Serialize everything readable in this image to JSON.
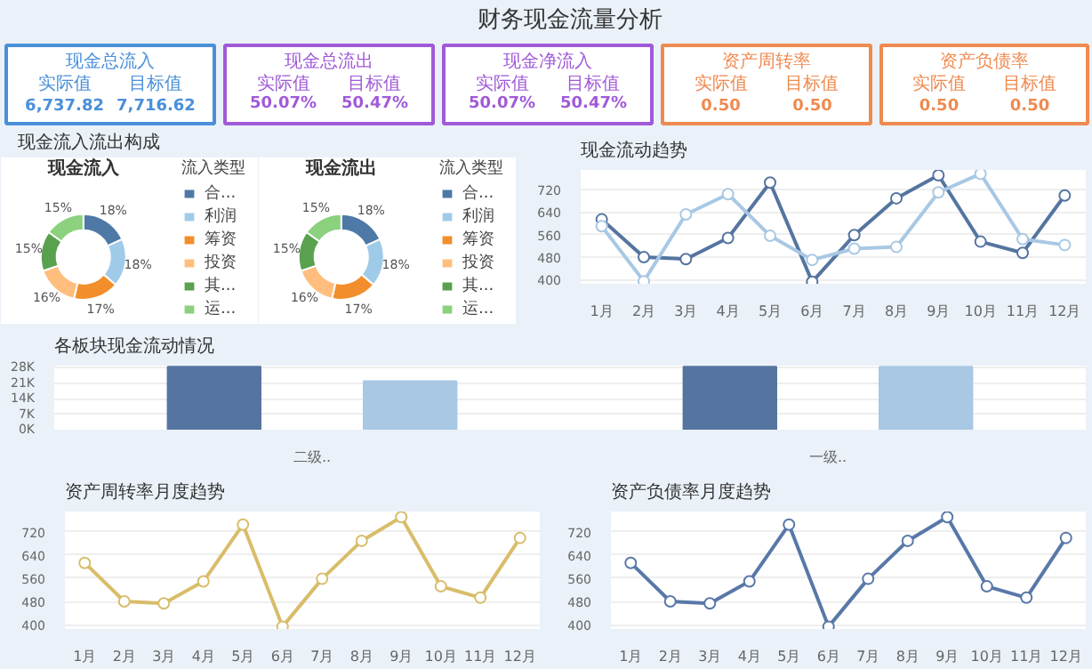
{
  "chart_data": [
    {
      "type": "other",
      "title": "财务现金流量分析"
    },
    {
      "type": "other",
      "title": "现金总流入",
      "color": "#4a90d9",
      "annotations": [
        "实际值",
        "目标值",
        "6,737.82",
        "7,716.62"
      ]
    },
    {
      "type": "other",
      "title": "现金总流出",
      "color": "#a05ad8",
      "annotations": [
        "实际值",
        "目标值",
        "50.07%",
        "50.47%"
      ]
    },
    {
      "type": "other",
      "title": "现金净流入",
      "color": "#a05ad8",
      "annotations": [
        "实际值",
        "目标值",
        "50.07%",
        "50.47%"
      ]
    },
    {
      "type": "other",
      "title": "资产周转率",
      "color": "#ef8a50",
      "annotations": [
        "实际值",
        "目标值",
        "0.50",
        "0.50"
      ]
    },
    {
      "type": "other",
      "title": "资产负债率",
      "color": "#ef8a50",
      "annotations": [
        "实际值",
        "目标值",
        "0.50",
        "0.50"
      ]
    },
    {
      "type": "other",
      "title": "现金流入流出构成"
    },
    {
      "type": "donut",
      "title": "现金流入",
      "legend_title": "流入类型",
      "legend": "right",
      "categories": [
        "合...",
        "利润",
        "筹资",
        "投资",
        "其...",
        "运..."
      ],
      "values": [
        18,
        18,
        17,
        16,
        15,
        15
      ],
      "value_labels": [
        "18%",
        "18%",
        "17%",
        "16%",
        "15%",
        "15%"
      ],
      "colors": [
        "#4e79a7",
        "#a0cbe8",
        "#f28e2b",
        "#ffbe7d",
        "#59a14f",
        "#8cd17d"
      ]
    },
    {
      "type": "donut",
      "title": "现金流出",
      "legend_title": "流入类型",
      "legend": "right",
      "categories": [
        "合...",
        "利润",
        "筹资",
        "投资",
        "其...",
        "运..."
      ],
      "values": [
        18,
        18,
        17,
        16,
        15,
        15
      ],
      "value_labels": [
        "18%",
        "18%",
        "17%",
        "16%",
        "15%",
        "15%"
      ],
      "colors": [
        "#4e79a7",
        "#a0cbe8",
        "#f28e2b",
        "#ffbe7d",
        "#59a14f",
        "#8cd17d"
      ]
    },
    {
      "type": "line",
      "title": "现金流动趋势",
      "categories": [
        "1月",
        "2月",
        "3月",
        "4月",
        "5月",
        "6月",
        "7月",
        "8月",
        "9月",
        "10月",
        "11月",
        "12月"
      ],
      "ylim": [
        385,
        790
      ],
      "yticks": [
        400,
        480,
        560,
        640,
        720
      ],
      "grid": "y",
      "marker": "circle",
      "series": [
        {
          "color": "#5575a0",
          "values": [
            614,
            480,
            473,
            548,
            745,
            392,
            558,
            689,
            771,
            535,
            495,
            699
          ]
        },
        {
          "color": "#a8c8e4",
          "values": [
            590,
            394,
            632,
            704,
            556,
            470,
            510,
            516,
            710,
            776,
            544,
            523
          ]
        }
      ]
    },
    {
      "type": "bar",
      "title": "各板块现金流动情况",
      "categories": [
        "二级..",
        "一级.."
      ],
      "ylim": [
        0,
        29000
      ],
      "yticks": [
        {
          "value": 0,
          "label": "0K"
        },
        {
          "value": 7000,
          "label": "7K"
        },
        {
          "value": 14000,
          "label": "14K"
        },
        {
          "value": 21000,
          "label": "21K"
        },
        {
          "value": 28000,
          "label": "28K"
        }
      ],
      "grid": "y",
      "series": [
        {
          "color": "#5575a0",
          "values": [
            28500,
            28500
          ]
        },
        {
          "color": "#a8c8e4",
          "values": [
            22000,
            28500
          ]
        }
      ]
    },
    {
      "type": "line",
      "title": "资产周转率月度趋势",
      "categories": [
        "1月",
        "2月",
        "3月",
        "4月",
        "5月",
        "6月",
        "7月",
        "8月",
        "9月",
        "10月",
        "11月",
        "12月"
      ],
      "ylim": [
        385,
        790
      ],
      "yticks": [
        400,
        480,
        560,
        640,
        720
      ],
      "grid": "y",
      "marker": "circle",
      "series": [
        {
          "color": "#d8bd6a",
          "values": [
            613,
            480,
            473,
            549,
            745,
            393,
            558,
            689,
            771,
            532,
            493,
            699
          ]
        }
      ]
    },
    {
      "type": "line",
      "title": "资产负债率月度趋势",
      "categories": [
        "1月",
        "2月",
        "3月",
        "4月",
        "5月",
        "6月",
        "7月",
        "8月",
        "9月",
        "10月",
        "11月",
        "12月"
      ],
      "ylim": [
        385,
        790
      ],
      "yticks": [
        400,
        480,
        560,
        640,
        720
      ],
      "grid": "y",
      "marker": "circle",
      "series": [
        {
          "color": "#5878a8",
          "values": [
            613,
            480,
            473,
            549,
            745,
            393,
            558,
            689,
            771,
            532,
            493,
            699
          ]
        }
      ]
    }
  ]
}
